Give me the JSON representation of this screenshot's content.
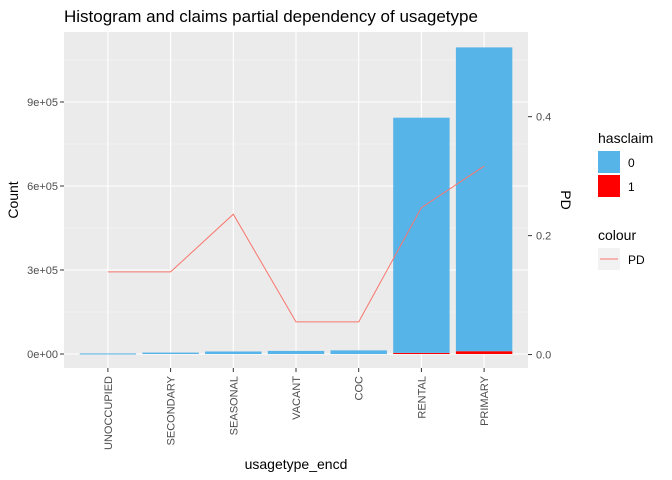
{
  "chart_data": {
    "type": "bar",
    "title": "Histogram and claims partial dependency of usagetype",
    "xlabel": "usagetype_encd",
    "ylabel": "Count",
    "y2label": "PD",
    "categories": [
      "UNOCCUPIED",
      "SECONDARY",
      "SEASONAL",
      "VACANT",
      "COC",
      "RENTAL",
      "PRIMARY"
    ],
    "series": [
      {
        "name": "0",
        "stack": "hasclaim",
        "color": "#56B4E9",
        "values": [
          2000,
          5000,
          9000,
          11000,
          13000,
          840000,
          1085000
        ]
      },
      {
        "name": "1",
        "stack": "hasclaim",
        "color": "#FF0000",
        "values": [
          0,
          0,
          0,
          0,
          0,
          4000,
          10000
        ]
      }
    ],
    "pd_series": {
      "name": "PD",
      "color": "#F8766D",
      "values": [
        0.139,
        0.139,
        0.236,
        0.055,
        0.055,
        0.247,
        0.317
      ]
    },
    "ylim": [
      -50000,
      1150000
    ],
    "yticks": [
      0,
      300000,
      600000,
      900000
    ],
    "ytick_labels": [
      "0e+00",
      "3e+05",
      "6e+05",
      "9e+05"
    ],
    "y2lim": [
      -0.0226,
      0.5424
    ],
    "y2ticks": [
      0,
      0.2,
      0.4
    ],
    "y2tick_labels": [
      "0.0",
      "0.2",
      "0.4"
    ],
    "legend": {
      "fill_title": "hasclaim",
      "colour_title": "colour",
      "position": "right"
    },
    "grid": true
  }
}
